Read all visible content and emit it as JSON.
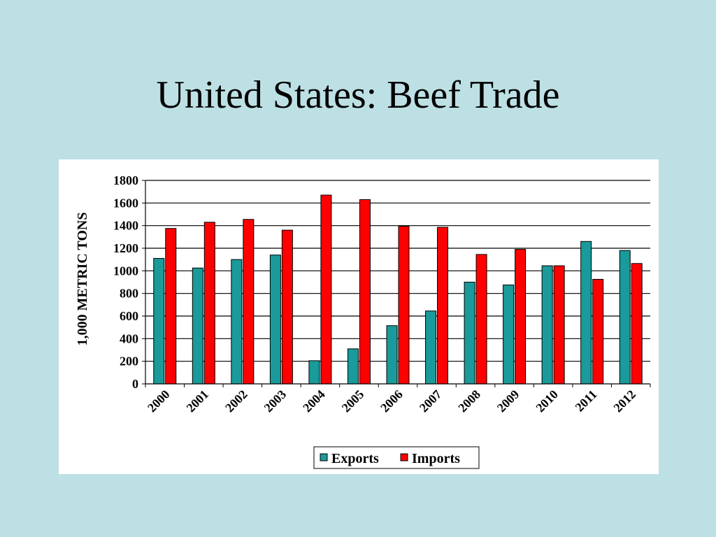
{
  "slide": {
    "title": "United States: Beef Trade"
  },
  "colors": {
    "background": "#bde0e4",
    "exports": "#1a9a9a",
    "imports": "#ff0000"
  },
  "chart_data": {
    "type": "bar",
    "title": "",
    "xlabel": "",
    "ylabel": "1,000 METRIC TONS",
    "ylim": [
      0,
      1800
    ],
    "yticks": [
      0,
      200,
      400,
      600,
      800,
      1000,
      1200,
      1400,
      1600,
      1800
    ],
    "grid": true,
    "legend_position": "bottom",
    "categories": [
      "2000",
      "2001",
      "2002",
      "2003",
      "2004",
      "2005",
      "2006",
      "2007",
      "2008",
      "2009",
      "2010",
      "2011",
      "2012"
    ],
    "series": [
      {
        "name": "Exports",
        "color": "#1a9a9a",
        "values": [
          1110,
          1025,
          1100,
          1140,
          205,
          310,
          515,
          645,
          900,
          875,
          1045,
          1260,
          1180
        ]
      },
      {
        "name": "Imports",
        "color": "#ff0000",
        "values": [
          1375,
          1430,
          1455,
          1360,
          1670,
          1630,
          1395,
          1385,
          1145,
          1190,
          1045,
          925,
          1065
        ]
      }
    ]
  }
}
